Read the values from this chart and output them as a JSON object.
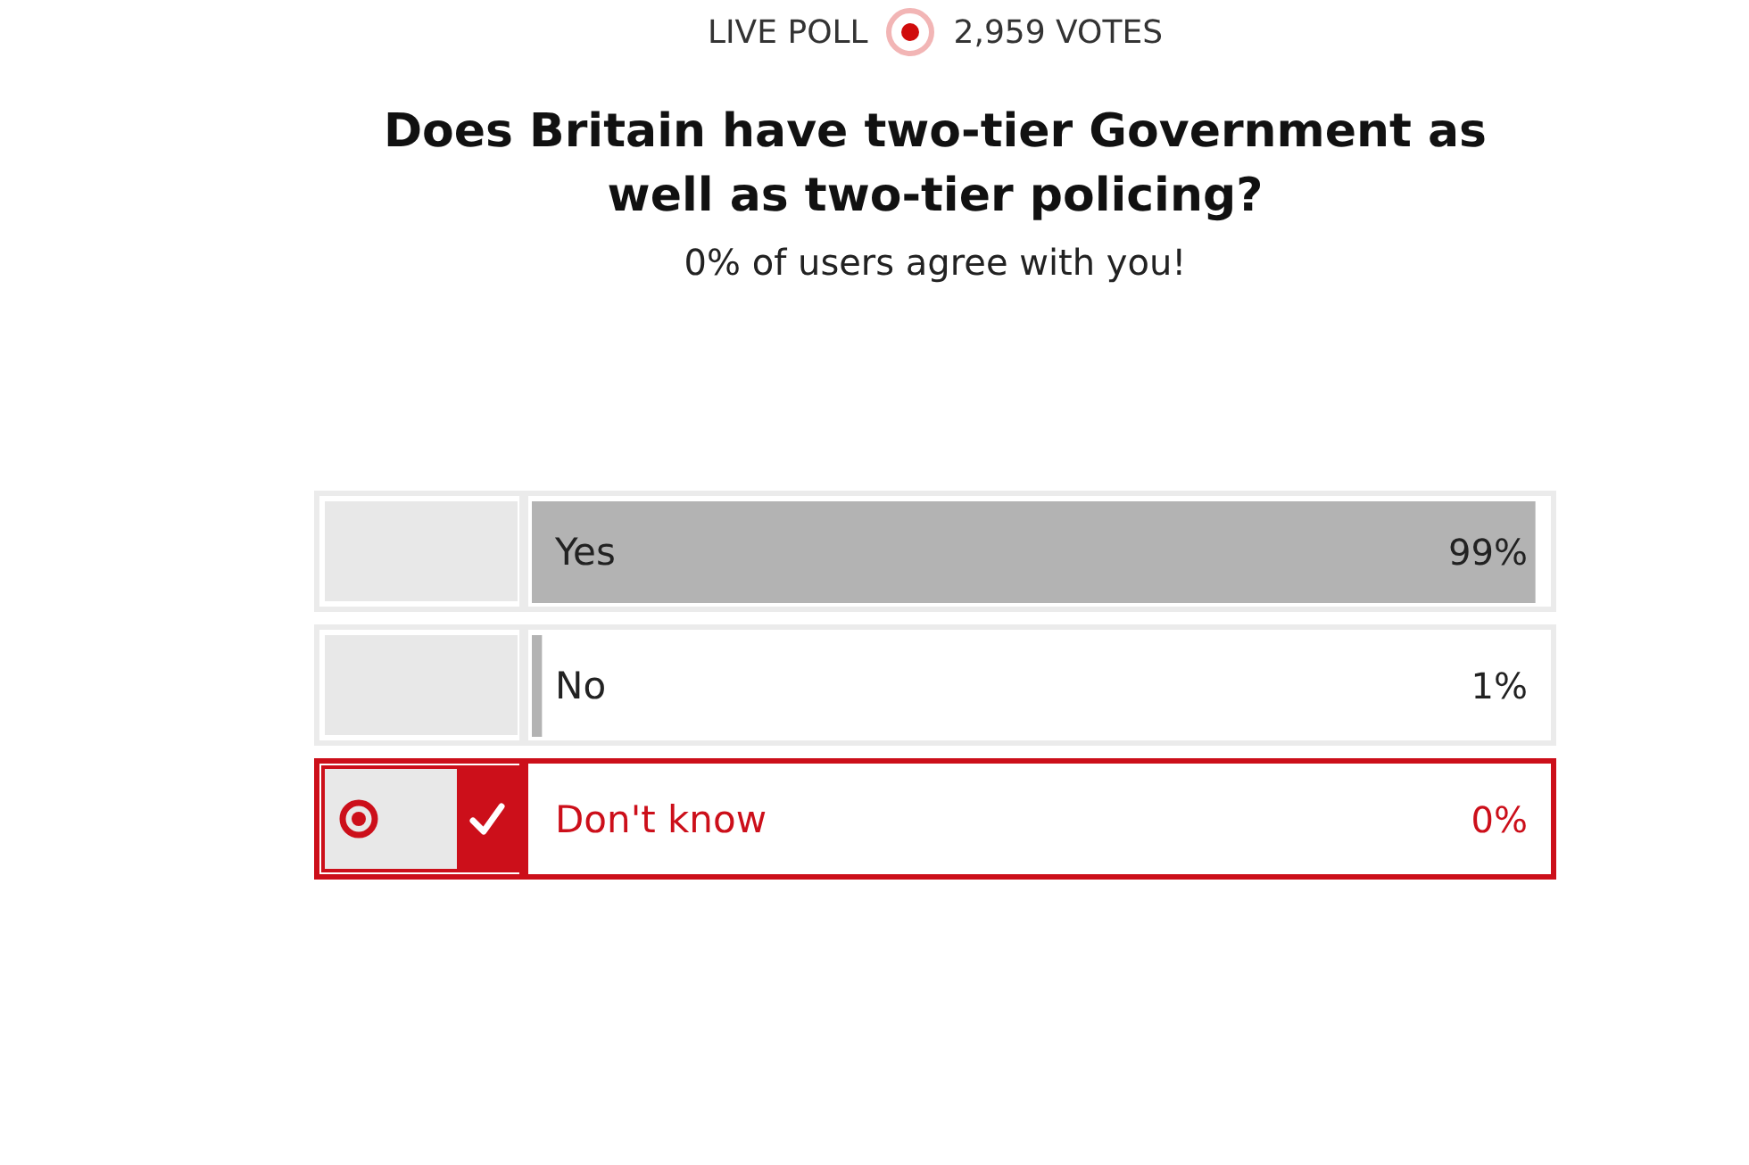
{
  "chart_data": {
    "type": "bar",
    "orientation": "horizontal",
    "title": "Does Britain have two-tier Government as well as two-tier policing?",
    "subtitle": "0% of users agree with you!",
    "annotations": [
      "LIVE POLL",
      "2,959 VOTES"
    ],
    "categories": [
      "Yes",
      "No",
      "Don't know"
    ],
    "values": [
      99,
      1,
      0
    ],
    "colors": [
      "#b3b3b3",
      "#b3b3b3",
      "#cc0f1a"
    ],
    "value_labels": [
      "99%",
      "1%",
      "0%"
    ],
    "tick_labels": "y"
  }
}
